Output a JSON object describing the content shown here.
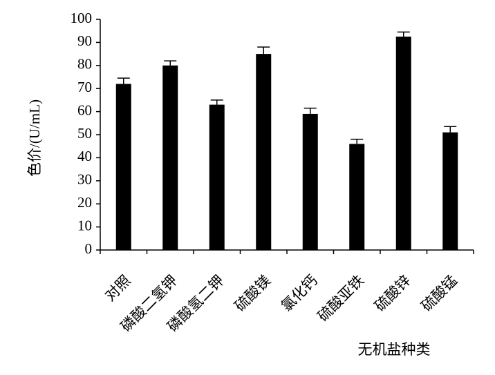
{
  "chart_data": {
    "type": "bar",
    "y_label": "色价/(U/mL)",
    "x_label": "无机盐种类",
    "categories": [
      "对照",
      "磷酸二氢钾",
      "磷酸氢二钾",
      "硫酸镁",
      "氯化钙",
      "硫酸亚铁",
      "硫酸锌",
      "硫酸锰"
    ],
    "values": [
      72,
      80,
      63,
      85,
      59,
      46,
      92.5,
      51
    ],
    "errors": [
      2.5,
      2,
      2,
      3,
      2.5,
      2,
      2,
      2.5
    ],
    "color": "#000000",
    "ylim": [
      0,
      100
    ],
    "yticks": [
      0,
      10,
      20,
      30,
      40,
      50,
      60,
      70,
      80,
      90,
      100
    ]
  }
}
